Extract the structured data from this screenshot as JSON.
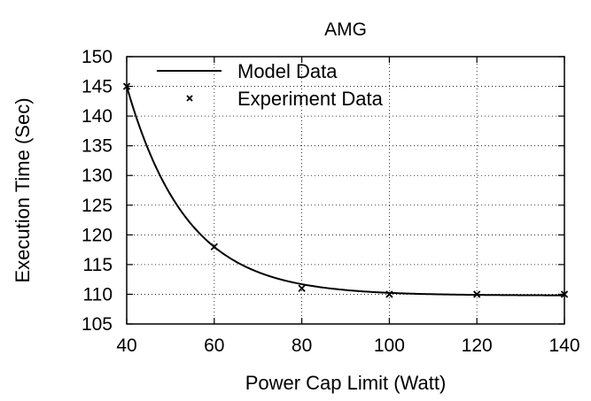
{
  "chart_data": {
    "type": "line",
    "title": "AMG",
    "xlabel": "Power Cap Limit (Watt)",
    "ylabel": "Execution Time (Sec)",
    "xlim": [
      40,
      140
    ],
    "ylim": [
      105,
      150
    ],
    "xticks": [
      40,
      60,
      80,
      100,
      120,
      140
    ],
    "yticks": [
      105,
      110,
      115,
      120,
      125,
      130,
      135,
      140,
      145,
      150
    ],
    "grid": true,
    "grid_style": "dotted",
    "legend_position": "top-left",
    "series": [
      {
        "name": "Model Data",
        "style": "line",
        "color": "#000000",
        "function": "exponential_decay",
        "params": {
          "asymptote": 109.8,
          "amplitude": 35.2,
          "x0": 40,
          "decay_rate": 0.073
        }
      },
      {
        "name": "Experiment Data",
        "style": "points",
        "marker": "x",
        "color": "#000000",
        "x": [
          40,
          60,
          80,
          100,
          120,
          140
        ],
        "y": [
          145,
          118,
          111,
          110,
          110,
          110
        ]
      }
    ]
  }
}
